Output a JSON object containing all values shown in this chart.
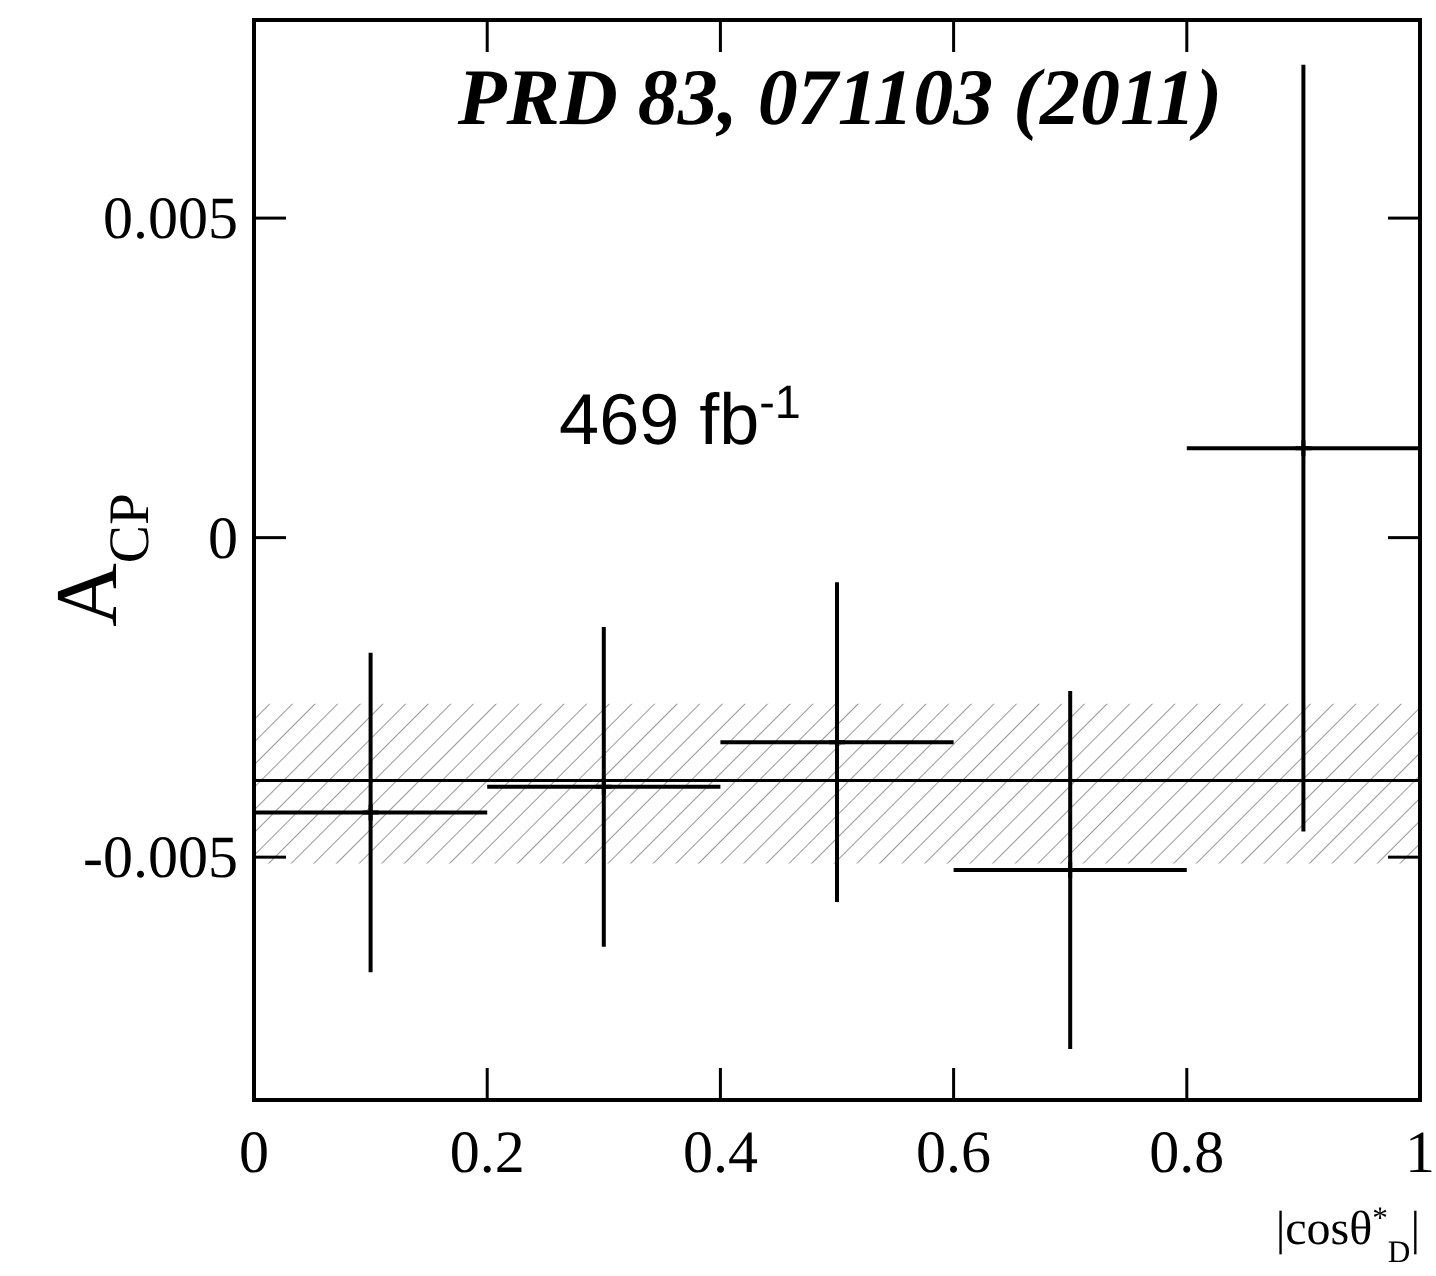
{
  "chart_data": {
    "type": "scatter",
    "xlabel": "|cosθ$^{*}$$_{D}$|",
    "ylabel": "A$_{CP}$",
    "annotations": [
      "PRD 83, 071103 (2011)",
      "469 fb$^{-1}$"
    ],
    "x": [
      0.1,
      0.3,
      0.5,
      0.7,
      0.9
    ],
    "values": [
      -0.0043,
      -0.0039,
      -0.0032,
      -0.0052,
      0.0014
    ],
    "errors": [
      0.0025,
      0.0025,
      0.0025,
      0.0028,
      0.006
    ],
    "xerrors": [
      0.1,
      0.1,
      0.1,
      0.1,
      0.1
    ],
    "color": "#000000",
    "marker": "cross",
    "xlim": [
      0,
      1
    ],
    "xticks": [
      0,
      0.2,
      0.4,
      0.6,
      0.8,
      1
    ],
    "ylim": [
      -0.0088,
      0.0081
    ],
    "yticks": [
      {
        "value": -0.005,
        "label": "-0.005"
      },
      0,
      0.005
    ],
    "ref_lines": [
      {
        "axis": "y",
        "value": -0.0038,
        "color": "#000000"
      }
    ],
    "bands": [
      {
        "axis": "y",
        "from": -0.0051,
        "to": -0.0026,
        "color": "#999999"
      }
    ]
  }
}
